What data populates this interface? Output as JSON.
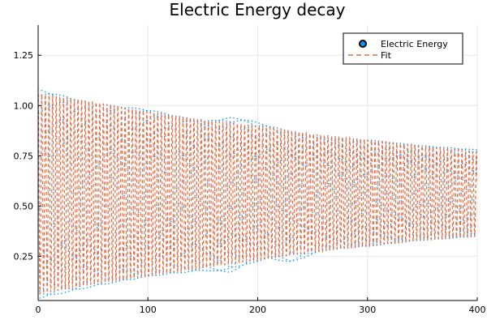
{
  "chart_data": {
    "type": "scatter",
    "title": "Electric Energy decay",
    "xlabel": "",
    "ylabel": "",
    "xlim": [
      0,
      400
    ],
    "ylim": [
      0.03,
      1.4
    ],
    "x_ticks": [
      0,
      100,
      200,
      300,
      400
    ],
    "x_tick_labels": [
      "0",
      "100",
      "200",
      "300",
      "400"
    ],
    "y_ticks": [
      0.25,
      0.5,
      0.75,
      1.0,
      1.25
    ],
    "y_tick_labels": [
      "0.25",
      "0.50",
      "0.75",
      "1.00",
      "1.25"
    ],
    "grid": true,
    "legend_position": "top-right",
    "oscillation_period": 3.3,
    "series": [
      {
        "name": "Electric Energy",
        "style": "points",
        "color": "#009AFA",
        "envelope": {
          "x": [
            0,
            50,
            100,
            150,
            175,
            190,
            210,
            230,
            260,
            300,
            350,
            400
          ],
          "upper": [
            1.08,
            1.01,
            0.98,
            0.92,
            0.94,
            0.93,
            0.9,
            0.87,
            0.84,
            0.83,
            0.8,
            0.78
          ],
          "lower": [
            0.04,
            0.1,
            0.15,
            0.18,
            0.17,
            0.21,
            0.24,
            0.22,
            0.28,
            0.3,
            0.33,
            0.35
          ]
        }
      },
      {
        "name": "Fit",
        "style": "dashed-line",
        "color": "#E26F46",
        "envelope": {
          "x": [
            0,
            50,
            100,
            150,
            200,
            250,
            300,
            350,
            400
          ],
          "upper": [
            1.06,
            1.02,
            0.97,
            0.93,
            0.9,
            0.86,
            0.83,
            0.8,
            0.77
          ],
          "lower": [
            0.06,
            0.11,
            0.15,
            0.19,
            0.23,
            0.27,
            0.3,
            0.33,
            0.35
          ]
        }
      }
    ]
  }
}
